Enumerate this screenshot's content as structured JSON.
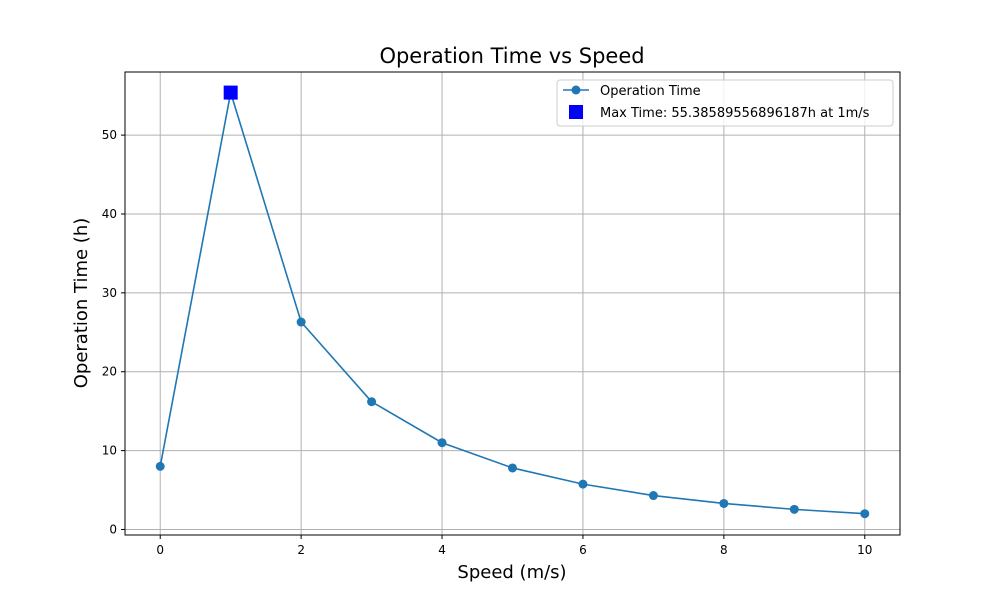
{
  "chart_data": {
    "type": "line",
    "title": "Operation Time vs Speed",
    "xlabel": "Speed (m/s)",
    "ylabel": "Operation Time (h)",
    "xlim": [
      -0.5,
      10.5
    ],
    "ylim": [
      -0.7,
      58
    ],
    "xticks": [
      0,
      2,
      4,
      6,
      8,
      10
    ],
    "yticks": [
      0,
      10,
      20,
      30,
      40,
      50
    ],
    "grid": true,
    "legend_position": "top-right",
    "series": [
      {
        "name": "Operation Time",
        "color": "#1f77b4",
        "marker": "circle",
        "x": [
          0,
          1,
          2,
          3,
          4,
          5,
          6,
          7,
          8,
          9,
          10
        ],
        "y": [
          8.0,
          55.39,
          26.3,
          16.2,
          11.0,
          7.8,
          5.75,
          4.3,
          3.3,
          2.55,
          2.0
        ]
      }
    ],
    "highlight": {
      "name": "Max Time: 55.38589556896187h at 1m/s",
      "color": "#0000ff",
      "marker": "square",
      "x": 1,
      "y": 55.39
    }
  }
}
